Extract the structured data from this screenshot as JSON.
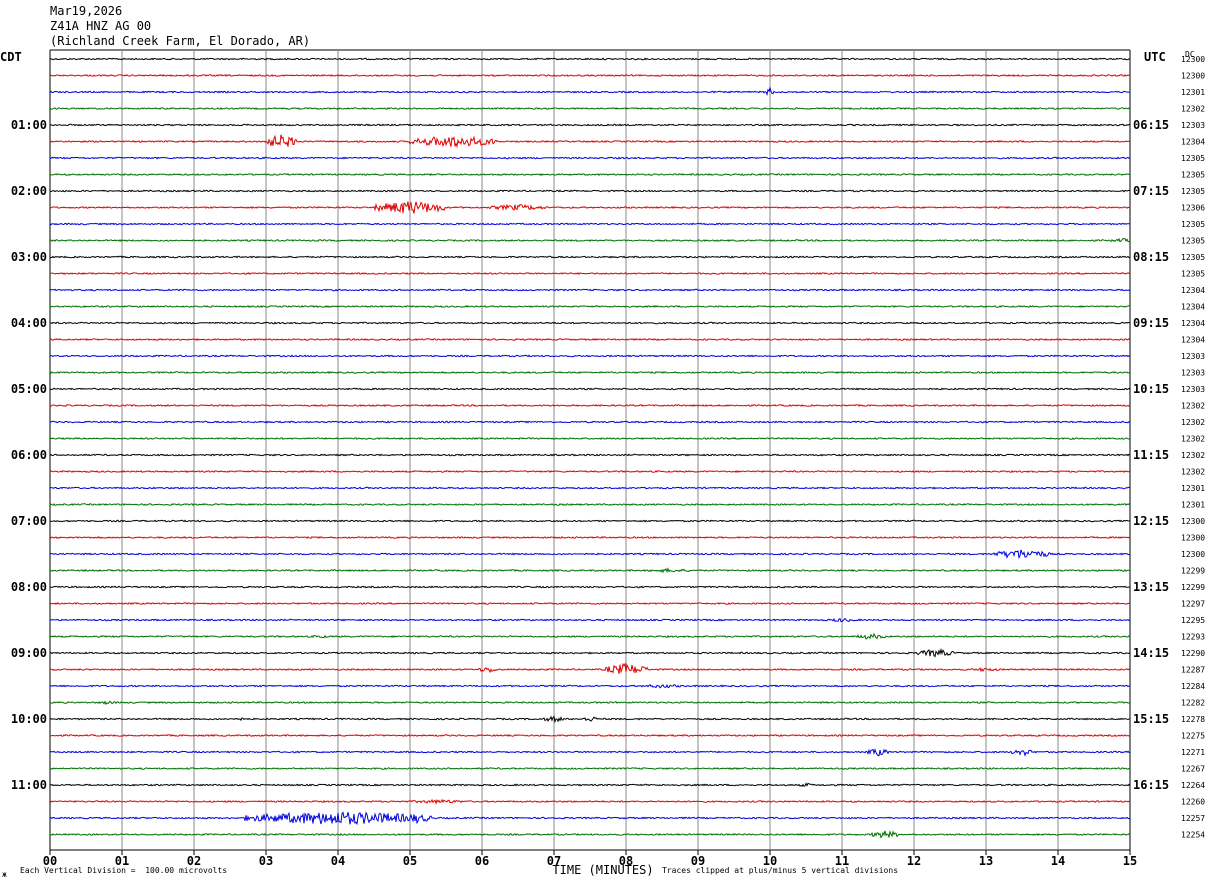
{
  "header": {
    "date": "Mar19,2026",
    "station": "Z41A HNZ AG 00",
    "location": "(Richland Creek Farm, El Dorado, AR)"
  },
  "left_timezone": "CDT",
  "right_timezone": "UTC",
  "dc_label": "DC",
  "footer": {
    "scale_note": "Each Vertical Division =  100.00 microvolts",
    "xlabel": "TIME (MINUTES)",
    "clip_note": "Traces clipped at plus/minus 5 vertical divisions",
    "corner_mark": "ж"
  },
  "colors": {
    "cycle": [
      "#000000",
      "#e00000",
      "#0000e0",
      "#007000"
    ],
    "grid": "#888888"
  },
  "chart_data": {
    "type": "line",
    "title": "Z41A HNZ AG 00",
    "xlabel": "TIME (MINUTES)",
    "xlim": [
      0,
      15
    ],
    "x_ticks": [
      "00",
      "01",
      "02",
      "03",
      "04",
      "05",
      "06",
      "07",
      "08",
      "09",
      "10",
      "11",
      "12",
      "13",
      "14",
      "15"
    ],
    "left_labels": [
      {
        "row": 4,
        "text": "01:00"
      },
      {
        "row": 8,
        "text": "02:00"
      },
      {
        "row": 12,
        "text": "03:00"
      },
      {
        "row": 16,
        "text": "04:00"
      },
      {
        "row": 20,
        "text": "05:00"
      },
      {
        "row": 24,
        "text": "06:00"
      },
      {
        "row": 28,
        "text": "07:00"
      },
      {
        "row": 32,
        "text": "08:00"
      },
      {
        "row": 36,
        "text": "09:00"
      },
      {
        "row": 40,
        "text": "10:00"
      },
      {
        "row": 44,
        "text": "11:00"
      }
    ],
    "right_labels": [
      {
        "row": 4,
        "text": "06:15"
      },
      {
        "row": 8,
        "text": "07:15"
      },
      {
        "row": 12,
        "text": "08:15"
      },
      {
        "row": 16,
        "text": "09:15"
      },
      {
        "row": 20,
        "text": "10:15"
      },
      {
        "row": 24,
        "text": "11:15"
      },
      {
        "row": 28,
        "text": "12:15"
      },
      {
        "row": 32,
        "text": "13:15"
      },
      {
        "row": 36,
        "text": "14:15"
      },
      {
        "row": 40,
        "text": "15:15"
      },
      {
        "row": 44,
        "text": "16:15"
      }
    ],
    "dc_values": [
      "12300",
      "12300",
      "12301",
      "12302",
      "12303",
      "12304",
      "12305",
      "12305",
      "12305",
      "12306",
      "12305",
      "12305",
      "12305",
      "12305",
      "12304",
      "12304",
      "12304",
      "12304",
      "12303",
      "12303",
      "12303",
      "12302",
      "12302",
      "12302",
      "12302",
      "12302",
      "12301",
      "12301",
      "12300",
      "12300",
      "12300",
      "12299",
      "12299",
      "12297",
      "12295",
      "12293",
      "12290",
      "12287",
      "12284",
      "12282",
      "12278",
      "12275",
      "12271",
      "12267",
      "12264",
      "12260",
      "12257",
      "12254"
    ],
    "events": [
      {
        "row": 2,
        "minute": 10.0,
        "amp": 5,
        "width": 0.05
      },
      {
        "row": 5,
        "minute": 3.2,
        "amp": 7,
        "width": 0.25
      },
      {
        "row": 5,
        "minute": 5.6,
        "amp": 6,
        "width": 0.6
      },
      {
        "row": 9,
        "minute": 5.0,
        "amp": 7,
        "width": 0.5
      },
      {
        "row": 9,
        "minute": 6.5,
        "amp": 3,
        "width": 0.4
      },
      {
        "row": 11,
        "minute": 14.9,
        "amp": 2,
        "width": 0.2
      },
      {
        "row": 30,
        "minute": 13.5,
        "amp": 5,
        "width": 0.4
      },
      {
        "row": 31,
        "minute": 8.6,
        "amp": 2,
        "width": 0.3
      },
      {
        "row": 34,
        "minute": 11.0,
        "amp": 2,
        "width": 0.2
      },
      {
        "row": 35,
        "minute": 11.4,
        "amp": 3,
        "width": 0.2
      },
      {
        "row": 35,
        "minute": 3.75,
        "amp": 2,
        "width": 0.1
      },
      {
        "row": 36,
        "minute": 12.3,
        "amp": 4,
        "width": 0.25
      },
      {
        "row": 37,
        "minute": 6.1,
        "amp": 3,
        "width": 0.15
      },
      {
        "row": 37,
        "minute": 8.0,
        "amp": 6,
        "width": 0.3
      },
      {
        "row": 37,
        "minute": 13.0,
        "amp": 2,
        "width": 0.2
      },
      {
        "row": 38,
        "minute": 8.5,
        "amp": 2,
        "width": 0.3
      },
      {
        "row": 39,
        "minute": 0.8,
        "amp": 2,
        "width": 0.1
      },
      {
        "row": 40,
        "minute": 7.0,
        "amp": 3,
        "width": 0.15
      },
      {
        "row": 40,
        "minute": 7.5,
        "amp": 3,
        "width": 0.1
      },
      {
        "row": 40,
        "minute": 2.6,
        "amp": 2,
        "width": 0.1
      },
      {
        "row": 42,
        "minute": 11.5,
        "amp": 4,
        "width": 0.15
      },
      {
        "row": 42,
        "minute": 13.5,
        "amp": 4,
        "width": 0.15
      },
      {
        "row": 44,
        "minute": 10.5,
        "amp": 2,
        "width": 0.1
      },
      {
        "row": 45,
        "minute": 5.4,
        "amp": 2,
        "width": 0.4
      },
      {
        "row": 46,
        "minute": 4.0,
        "amp": 7,
        "width": 1.3
      },
      {
        "row": 46,
        "minute": 5.1,
        "amp": 5,
        "width": 0.15
      },
      {
        "row": 47,
        "minute": 11.6,
        "amp": 4,
        "width": 0.2
      }
    ]
  }
}
